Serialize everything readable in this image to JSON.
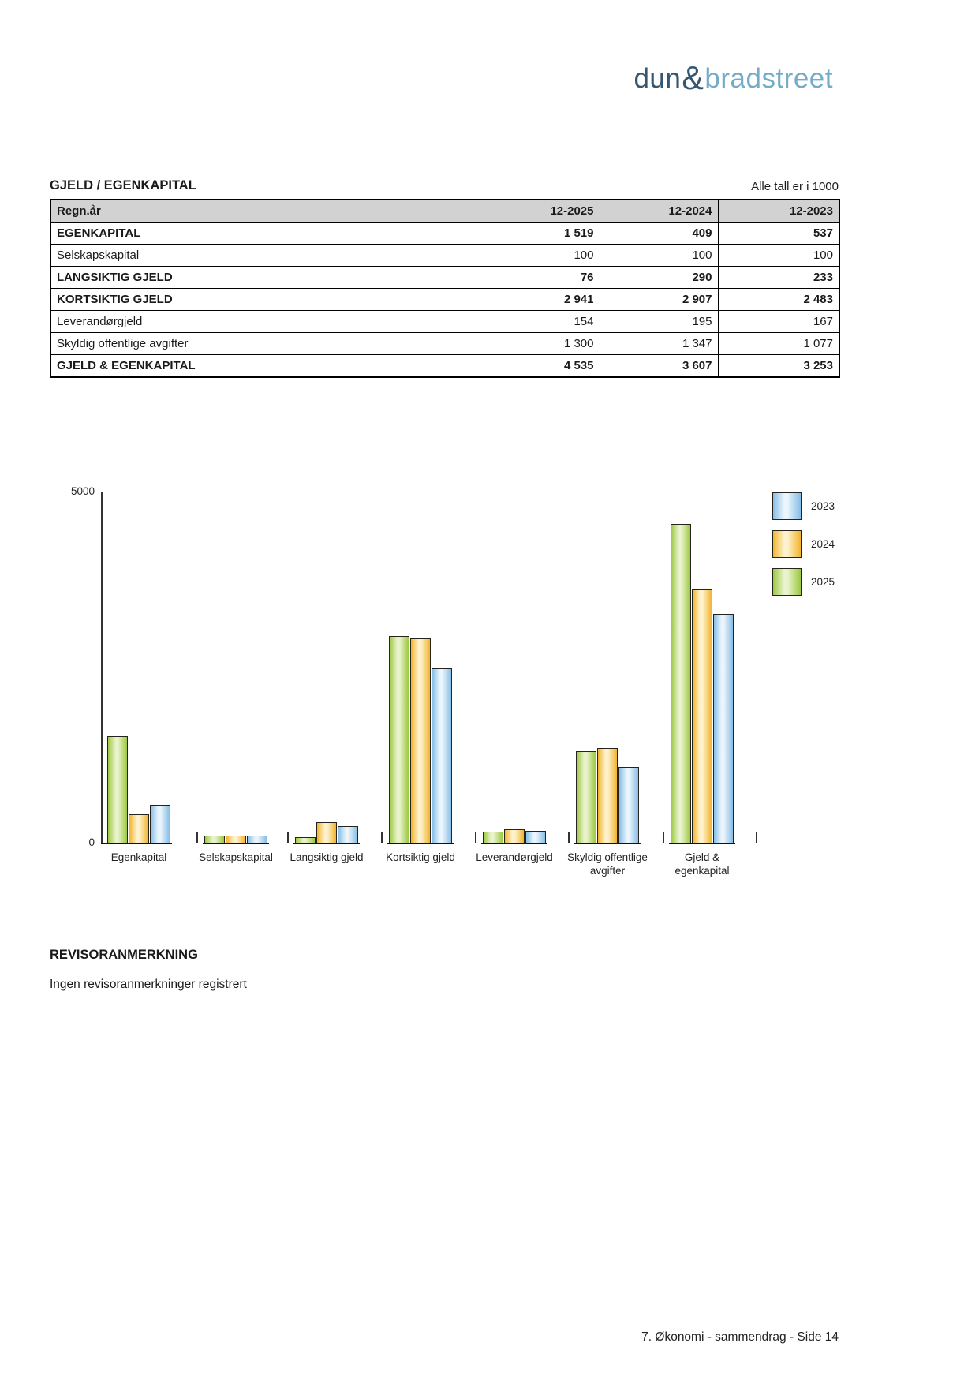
{
  "logo": {
    "part1": "dun",
    "amp": "&",
    "part2": "bradstreet"
  },
  "section": {
    "title": "GJELD / EGENKAPITAL",
    "note": "Alle tall er i 1000"
  },
  "table": {
    "header": [
      "Regn.år",
      "12-2025",
      "12-2024",
      "12-2023"
    ],
    "rows": [
      {
        "label": "EGENKAPITAL",
        "bold": true,
        "values": [
          "1 519",
          "409",
          "537"
        ]
      },
      {
        "label": "Selskapskapital",
        "bold": false,
        "values": [
          "100",
          "100",
          "100"
        ]
      },
      {
        "label": "LANGSIKTIG GJELD",
        "bold": true,
        "values": [
          "76",
          "290",
          "233"
        ]
      },
      {
        "label": "KORTSIKTIG GJELD",
        "bold": true,
        "values": [
          "2 941",
          "2 907",
          "2 483"
        ]
      },
      {
        "label": "Leverandørgjeld",
        "bold": false,
        "values": [
          "154",
          "195",
          "167"
        ]
      },
      {
        "label": "Skyldig offentlige avgifter",
        "bold": false,
        "values": [
          "1 300",
          "1 347",
          "1 077"
        ]
      },
      {
        "label": "GJELD & EGENKAPITAL",
        "bold": true,
        "values": [
          "4 535",
          "3 607",
          "3 253"
        ]
      }
    ]
  },
  "chart_data": {
    "type": "bar",
    "title": "",
    "categories": [
      [
        "Egenkapital"
      ],
      [
        "Selskapskapital"
      ],
      [
        "Langsiktig gjeld"
      ],
      [
        "Kortsiktig gjeld"
      ],
      [
        "Leverandørgjeld"
      ],
      [
        "Skyldig offentlige",
        "avgifter"
      ],
      [
        "Gjeld &",
        "egenkapital"
      ]
    ],
    "series": [
      {
        "name": "2025",
        "color_edge": "#9cc841",
        "color_mid": "#e9f3cc",
        "values": [
          1519,
          100,
          76,
          2941,
          154,
          1300,
          4535
        ]
      },
      {
        "name": "2024",
        "color_edge": "#f2b42d",
        "color_mid": "#fdf2cd",
        "values": [
          409,
          100,
          290,
          2907,
          195,
          1347,
          3607
        ]
      },
      {
        "name": "2023",
        "color_edge": "#86bde6",
        "color_mid": "#eaf5fc",
        "values": [
          537,
          100,
          233,
          2483,
          167,
          1077,
          3253
        ]
      }
    ],
    "ylim": [
      0,
      5000
    ],
    "yticks": [
      0,
      5000
    ],
    "grid": "top-dotted-line-only",
    "legend_position": "top-right",
    "legend_order": [
      "2023",
      "2024",
      "2025"
    ]
  },
  "revisor": {
    "heading": "REVISORANMERKNING",
    "text": "Ingen revisoranmerkninger registrert"
  },
  "footer": {
    "text": "7. Økonomi - sammendrag - Side 14"
  }
}
